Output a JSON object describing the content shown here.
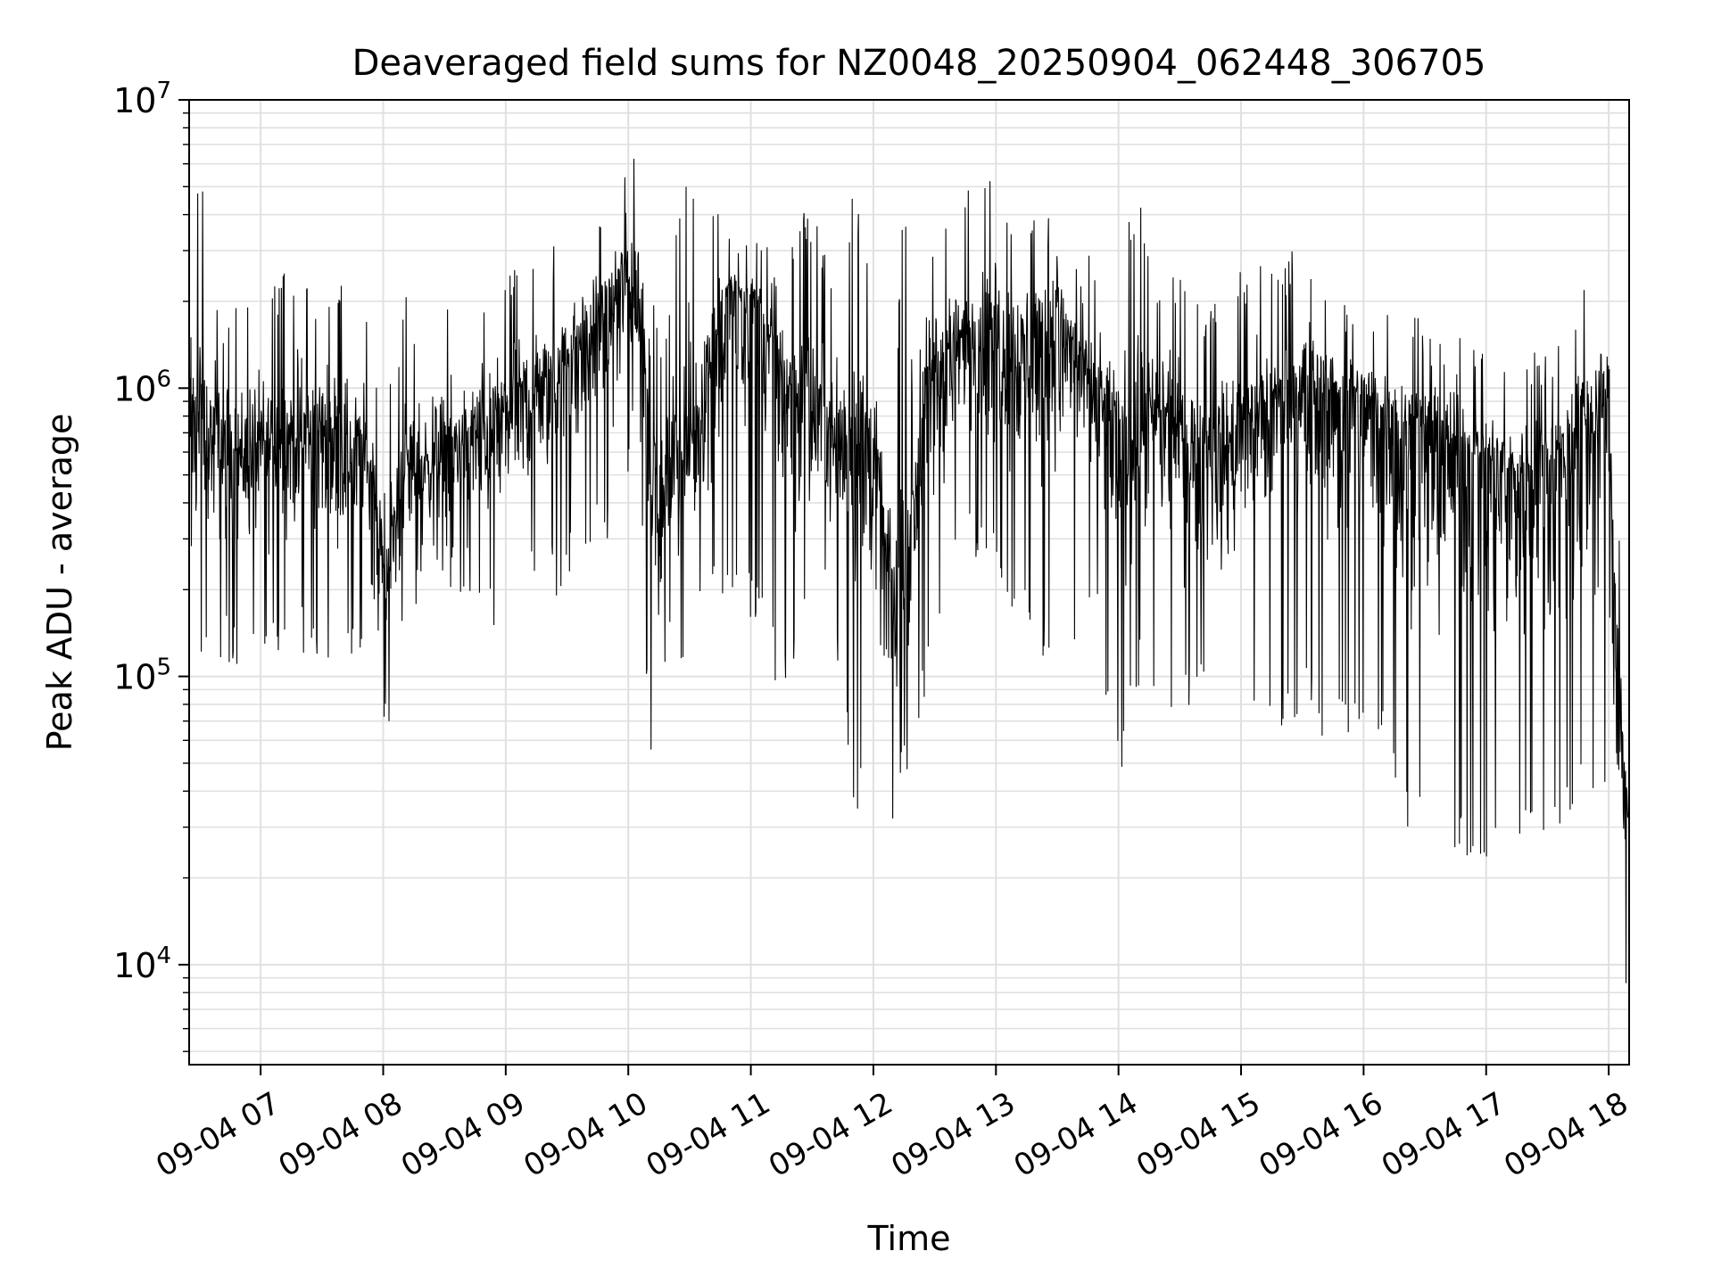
{
  "chart_data": {
    "type": "line",
    "title": "Deaveraged field sums for NZ0048_20250904_062448_306705",
    "xlabel": "Time",
    "ylabel": "Peak ADU - average",
    "yscale": "log",
    "ylim": [
      4500,
      10000000
    ],
    "xlim": [
      "2025-09-04 06:25",
      "2025-09-04 18:10"
    ],
    "grid": true,
    "line_color": "#000000",
    "grid_color": "#e0e0e0",
    "x_ticks": [
      {
        "label": "09-04 07",
        "time": "2025-09-04 07:00"
      },
      {
        "label": "09-04 08",
        "time": "2025-09-04 08:00"
      },
      {
        "label": "09-04 09",
        "time": "2025-09-04 09:00"
      },
      {
        "label": "09-04 10",
        "time": "2025-09-04 10:00"
      },
      {
        "label": "09-04 11",
        "time": "2025-09-04 11:00"
      },
      {
        "label": "09-04 12",
        "time": "2025-09-04 12:00"
      },
      {
        "label": "09-04 13",
        "time": "2025-09-04 13:00"
      },
      {
        "label": "09-04 14",
        "time": "2025-09-04 14:00"
      },
      {
        "label": "09-04 15",
        "time": "2025-09-04 15:00"
      },
      {
        "label": "09-04 16",
        "time": "2025-09-04 16:00"
      },
      {
        "label": "09-04 17",
        "time": "2025-09-04 17:00"
      },
      {
        "label": "09-04 18",
        "time": "2025-09-04 18:00"
      }
    ],
    "y_ticks": [
      {
        "base": "10",
        "exp": "4",
        "value": 10000
      },
      {
        "base": "10",
        "exp": "5",
        "value": 100000
      },
      {
        "base": "10",
        "exp": "6",
        "value": 1000000
      },
      {
        "base": "10",
        "exp": "7",
        "value": 10000000
      }
    ],
    "series": [
      {
        "x": [
          "2025-09-04 06:25",
          "2025-09-04 06:30",
          "2025-09-04 06:40",
          "2025-09-04 06:50",
          "2025-09-04 07:00",
          "2025-09-04 07:10",
          "2025-09-04 07:20",
          "2025-09-04 07:30",
          "2025-09-04 07:40",
          "2025-09-04 07:50",
          "2025-09-04 07:55",
          "2025-09-04 08:00",
          "2025-09-04 08:05",
          "2025-09-04 08:10",
          "2025-09-04 08:20",
          "2025-09-04 08:30",
          "2025-09-04 08:40",
          "2025-09-04 08:50",
          "2025-09-04 09:00",
          "2025-09-04 09:10",
          "2025-09-04 09:20",
          "2025-09-04 09:30",
          "2025-09-04 09:40",
          "2025-09-04 09:50",
          "2025-09-04 10:00",
          "2025-09-04 10:05",
          "2025-09-04 10:10",
          "2025-09-04 10:15",
          "2025-09-04 10:20",
          "2025-09-04 10:25",
          "2025-09-04 10:30",
          "2025-09-04 10:40",
          "2025-09-04 10:50",
          "2025-09-04 11:00",
          "2025-09-04 11:10",
          "2025-09-04 11:20",
          "2025-09-04 11:30",
          "2025-09-04 11:40",
          "2025-09-04 11:50",
          "2025-09-04 12:00",
          "2025-09-04 12:05",
          "2025-09-04 12:10",
          "2025-09-04 12:15",
          "2025-09-04 12:20",
          "2025-09-04 12:25",
          "2025-09-04 12:30",
          "2025-09-04 12:40",
          "2025-09-04 12:50",
          "2025-09-04 13:00",
          "2025-09-04 13:10",
          "2025-09-04 13:20",
          "2025-09-04 13:30",
          "2025-09-04 13:40",
          "2025-09-04 13:50",
          "2025-09-04 14:00",
          "2025-09-04 14:10",
          "2025-09-04 14:20",
          "2025-09-04 14:30",
          "2025-09-04 14:40",
          "2025-09-04 14:50",
          "2025-09-04 15:00",
          "2025-09-04 15:10",
          "2025-09-04 15:20",
          "2025-09-04 15:30",
          "2025-09-04 15:40",
          "2025-09-04 15:50",
          "2025-09-04 16:00",
          "2025-09-04 16:10",
          "2025-09-04 16:20",
          "2025-09-04 16:30",
          "2025-09-04 16:40",
          "2025-09-04 16:50",
          "2025-09-04 17:00",
          "2025-09-04 17:10",
          "2025-09-04 17:20",
          "2025-09-04 17:30",
          "2025-09-04 17:40",
          "2025-09-04 17:50",
          "2025-09-04 18:00",
          "2025-09-04 18:03",
          "2025-09-04 18:06",
          "2025-09-04 18:10"
        ],
        "center": [
          900000,
          700000,
          650000,
          600000,
          620000,
          650000,
          700000,
          700000,
          650000,
          600000,
          500000,
          200000,
          300000,
          500000,
          550000,
          600000,
          650000,
          700000,
          800000,
          900000,
          1000000,
          1200000,
          1500000,
          1900000,
          2400000,
          2000000,
          1000000,
          300000,
          500000,
          600000,
          600000,
          1200000,
          2200000,
          2000000,
          1400000,
          1000000,
          800000,
          700000,
          700000,
          600000,
          300000,
          150000,
          200000,
          400000,
          900000,
          1100000,
          1400000,
          1600000,
          1600000,
          1400000,
          1500000,
          1800000,
          1300000,
          900000,
          650000,
          700000,
          800000,
          700000,
          600000,
          600000,
          700000,
          800000,
          900000,
          1000000,
          1000000,
          950000,
          900000,
          800000,
          750000,
          700000,
          650000,
          600000,
          550000,
          500000,
          500000,
          550000,
          650000,
          800000,
          900000,
          200000,
          70000,
          30000
        ],
        "max": [
          3000000,
          6500000,
          2000000,
          2100000,
          2300000,
          2500000,
          2900000,
          2200000,
          2700000,
          2000000,
          1300000,
          1300000,
          1200000,
          2200000,
          1700000,
          1900000,
          2000000,
          2500000,
          2600000,
          3100000,
          3100000,
          3500000,
          4000000,
          4000000,
          7500000,
          7000000,
          5500000,
          1200000,
          2200000,
          4500000,
          5900000,
          5200000,
          3300000,
          3700000,
          3000000,
          3900000,
          4500000,
          2300000,
          5200000,
          2300000,
          900000,
          900000,
          5200000,
          900000,
          3200000,
          4200000,
          4500000,
          5400000,
          5500000,
          4200000,
          4700000,
          3400000,
          3200000,
          2700000,
          2700000,
          5200000,
          2600000,
          2500000,
          2100000,
          2200000,
          2600000,
          3400000,
          2400000,
          4200000,
          2300000,
          2000000,
          2200000,
          1900000,
          1900000,
          1700000,
          1600000,
          1500000,
          1400000,
          1300000,
          1400000,
          1300000,
          1800000,
          2500000,
          3000000,
          800000,
          250000,
          70000
        ],
        "min": [
          280000,
          110000,
          100000,
          110000,
          100000,
          110000,
          120000,
          110000,
          110000,
          110000,
          60000,
          50000,
          90000,
          130000,
          200000,
          180000,
          200000,
          150000,
          100000,
          200000,
          180000,
          200000,
          230000,
          280000,
          400000,
          800000,
          45000,
          90000,
          110000,
          105000,
          120000,
          180000,
          190000,
          150000,
          100000,
          80000,
          150000,
          180000,
          30000,
          40000,
          30000,
          29000,
          40000,
          65000,
          80000,
          90000,
          200000,
          250000,
          200000,
          150000,
          110000,
          95000,
          120000,
          130000,
          42000,
          90000,
          75000,
          70000,
          80000,
          75000,
          70000,
          60000,
          65000,
          70000,
          60000,
          55000,
          50000,
          48000,
          30000,
          25000,
          22000,
          24000,
          20000,
          18000,
          25000,
          30000,
          28000,
          40000,
          40000,
          6000,
          6000,
          8000
        ]
      }
    ]
  }
}
